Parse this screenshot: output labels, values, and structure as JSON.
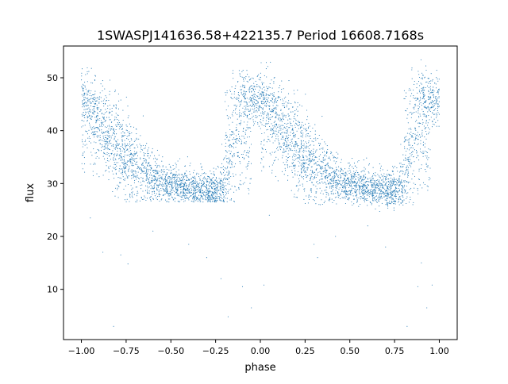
{
  "chart_data": {
    "type": "scatter",
    "title": "1SWASPJ141636.58+422135.7 Period 16608.7168s",
    "xlabel": "phase",
    "ylabel": "flux",
    "xlim": [
      -1.1,
      1.1
    ],
    "ylim": [
      0.5,
      56
    ],
    "xticks": [
      -1.0,
      -0.75,
      -0.5,
      -0.25,
      0.0,
      0.25,
      0.5,
      0.75,
      1.0
    ],
    "xtick_labels": [
      "−1.00",
      "−0.75",
      "−0.50",
      "−0.25",
      "0.00",
      "0.25",
      "0.50",
      "0.75",
      "1.00"
    ],
    "yticks": [
      10,
      20,
      30,
      40,
      50
    ],
    "ytick_labels": [
      "10",
      "20",
      "30",
      "40",
      "50"
    ],
    "grid": false,
    "marker_color": "#1f77b4",
    "envelope": {
      "description_phase": [
        0.0,
        0.05,
        0.1,
        0.15,
        0.2,
        0.25,
        0.3,
        0.35,
        0.4,
        0.45,
        0.5,
        0.55,
        0.6,
        0.65,
        0.7,
        0.75,
        0.8,
        0.85,
        0.9,
        0.95,
        1.0
      ],
      "median_flux": [
        46,
        44.5,
        42,
        39.5,
        37,
        35,
        33.5,
        32,
        31,
        30.2,
        29.8,
        29.5,
        29.3,
        29.0,
        28.8,
        28.6,
        30,
        40,
        45,
        46,
        46
      ],
      "scatter_flux": [
        2.5,
        3,
        3.5,
        4,
        4,
        4,
        3.5,
        3,
        2.5,
        2,
        1.8,
        1.8,
        1.8,
        1.8,
        1.8,
        1.8,
        3,
        6,
        4,
        2.5,
        2.5
      ]
    },
    "outliers": [
      {
        "x": -0.95,
        "y": 23.5
      },
      {
        "x": -0.88,
        "y": 17
      },
      {
        "x": -0.78,
        "y": 16.5
      },
      {
        "x": -0.74,
        "y": 14.8
      },
      {
        "x": -0.6,
        "y": 21
      },
      {
        "x": -0.4,
        "y": 18.5
      },
      {
        "x": -0.3,
        "y": 16
      },
      {
        "x": -0.22,
        "y": 12
      },
      {
        "x": -0.18,
        "y": 4.8
      },
      {
        "x": -0.1,
        "y": 10.5
      },
      {
        "x": -0.05,
        "y": 6.5
      },
      {
        "x": 0.02,
        "y": 10.8
      },
      {
        "x": 0.05,
        "y": 24
      },
      {
        "x": 0.3,
        "y": 18.5
      },
      {
        "x": 0.32,
        "y": 16
      },
      {
        "x": 0.42,
        "y": 20
      },
      {
        "x": 0.6,
        "y": 22
      },
      {
        "x": 0.7,
        "y": 18
      },
      {
        "x": 0.82,
        "y": 3
      },
      {
        "x": 0.88,
        "y": 10.5
      },
      {
        "x": 0.93,
        "y": 6.5
      },
      {
        "x": 0.96,
        "y": 10.8
      },
      {
        "x": 0.9,
        "y": 15
      },
      {
        "x": -0.82,
        "y": 3
      }
    ]
  }
}
